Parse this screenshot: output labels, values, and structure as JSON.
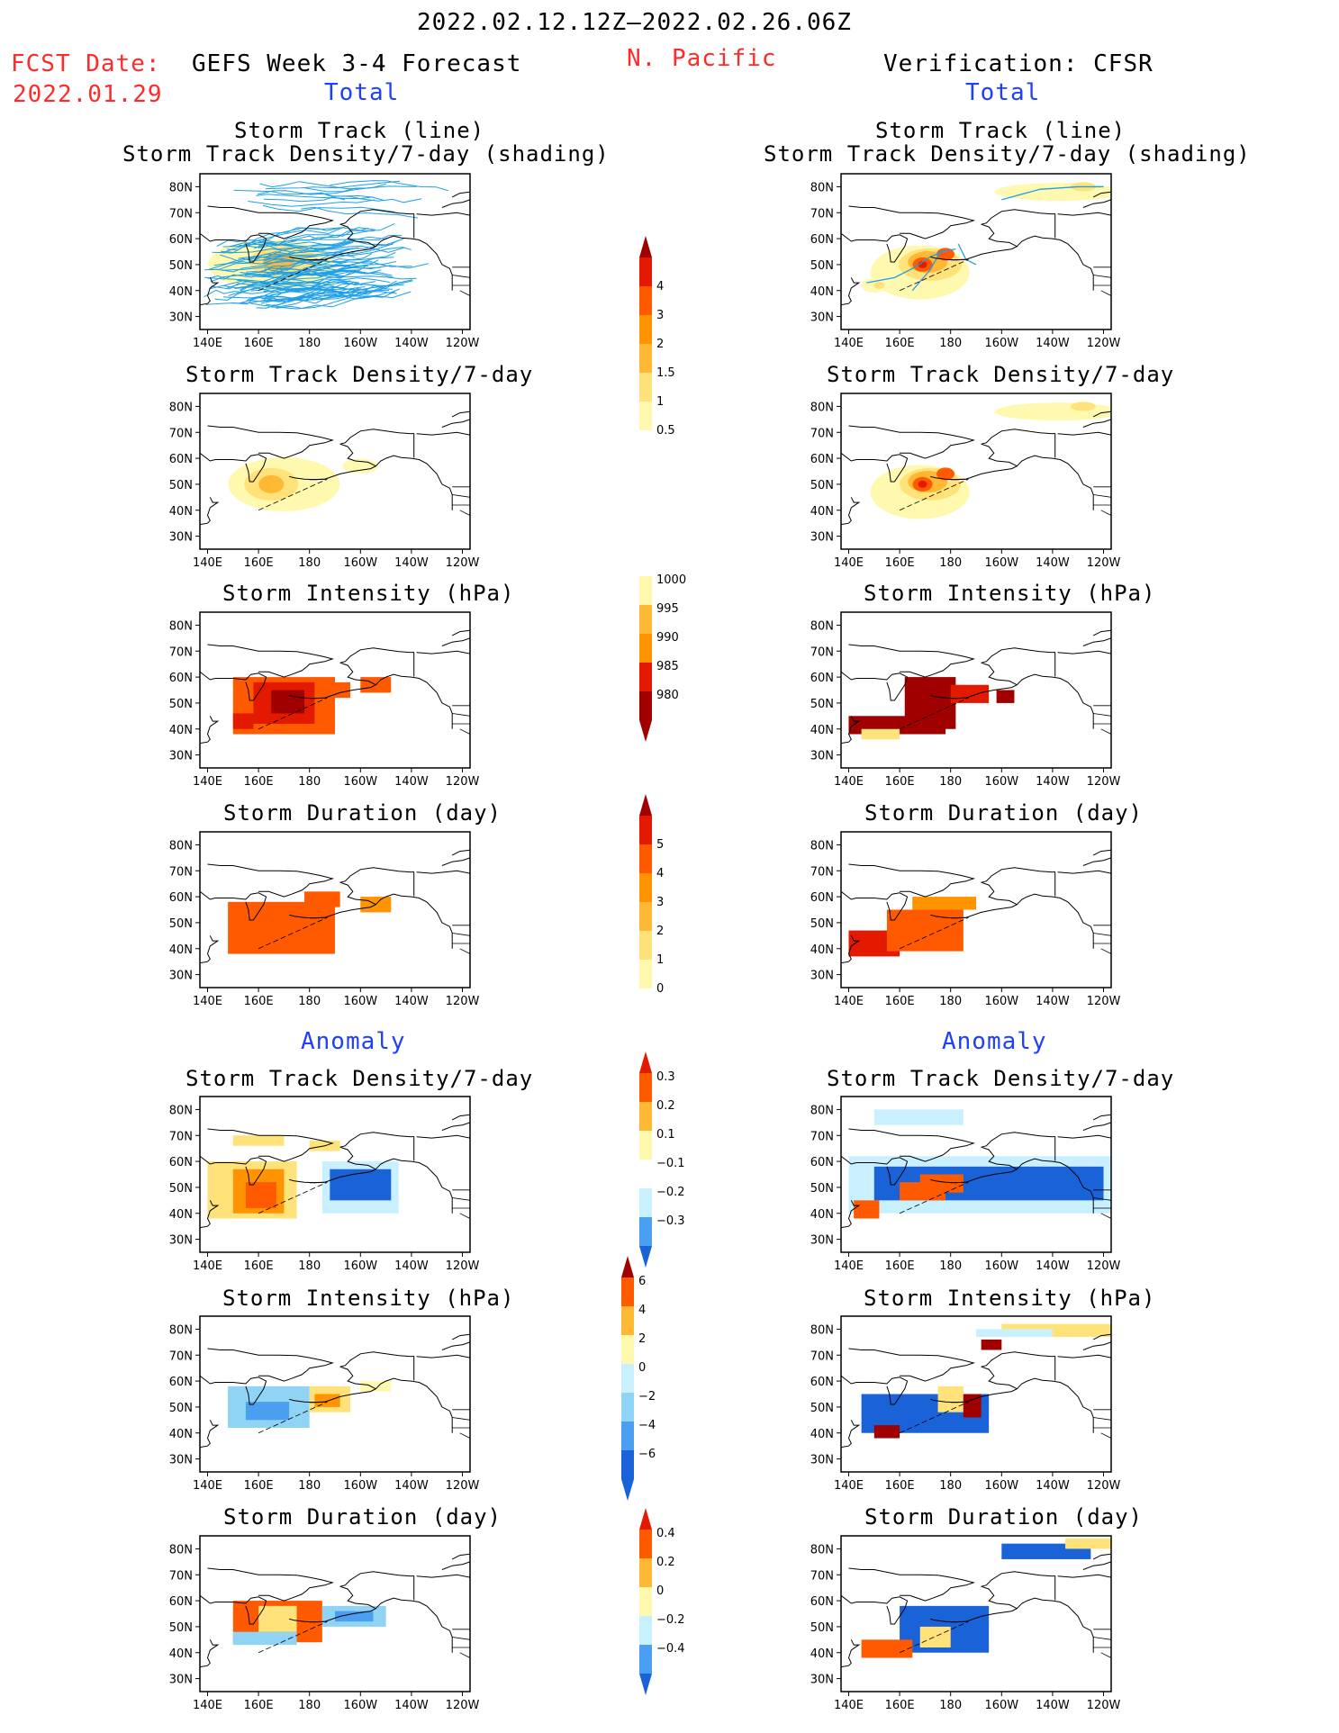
{
  "header": {
    "date_range": "2022.02.12.12Z–2022.02.26.06Z",
    "fcst_label": "FCST Date:",
    "fcst_date": "2022.01.29",
    "left_title": "GEFS Week 3-4 Forecast",
    "region": "N. Pacific",
    "right_title": "Verification: CFSR",
    "left_section_total": "Total",
    "right_section_total": "Total",
    "left_section_anomaly": "Anomaly",
    "right_section_anomaly": "Anomaly"
  },
  "axes": {
    "lat_labels": [
      "80N",
      "70N",
      "60N",
      "50N",
      "40N",
      "30N"
    ],
    "lon_labels": [
      "140E",
      "160E",
      "180",
      "160W",
      "140W",
      "120W"
    ]
  },
  "panels": {
    "track_line_title_1": "Storm Track (line)",
    "track_line_title_2": "Storm Track Density/7-day (shading)",
    "density_title": "Storm Track Density/7-day",
    "intensity_title": "Storm Intensity (hPa)",
    "duration_title": "Storm Duration (day)"
  },
  "colorbars": {
    "density_total": [
      "4",
      "3",
      "2",
      "1.5",
      "1",
      "0.5"
    ],
    "intensity_total": [
      "1000",
      "995",
      "990",
      "985",
      "980"
    ],
    "duration_total": [
      "5",
      "4",
      "3",
      "2",
      "1",
      "0"
    ],
    "density_anom": [
      "0.3",
      "0.2",
      "0.1",
      "−0.1",
      "−0.2",
      "−0.3"
    ],
    "intensity_anom": [
      "6",
      "4",
      "2",
      "0",
      "−2",
      "−4",
      "−6"
    ],
    "duration_anom": [
      "0.4",
      "0.2",
      "0",
      "−0.2",
      "−0.4"
    ]
  },
  "colors": {
    "warm": [
      "#fff9b0",
      "#ffe27a",
      "#ffb833",
      "#ff9400",
      "#ff5a00",
      "#e31a00",
      "#a00000"
    ],
    "cool": [
      "#c8f0ff",
      "#8fd4f5",
      "#4a9ff0",
      "#1a62d8"
    ],
    "track_line": "#1e9fe8",
    "title_red": "#ff2a2a",
    "title_blue": "#1f3fff"
  }
}
